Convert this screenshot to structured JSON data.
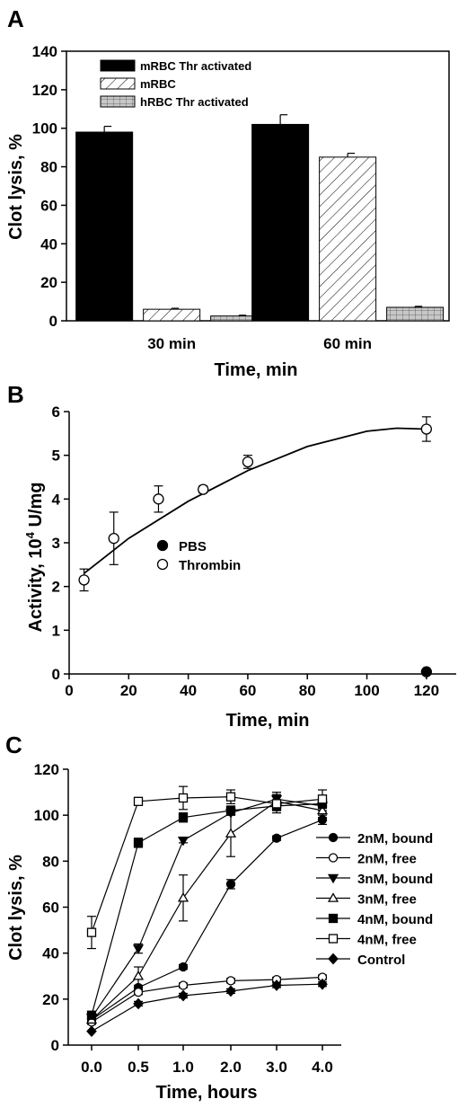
{
  "chart_data": [
    {
      "panel": "A",
      "type": "bar",
      "categories": [
        "30 min",
        "60 min"
      ],
      "series": [
        {
          "name": "mRBC Thr activated",
          "values": [
            98,
            102
          ],
          "errors": [
            3,
            5
          ],
          "style": "solid"
        },
        {
          "name": "mRBC",
          "values": [
            6,
            85
          ],
          "errors": [
            0.5,
            2
          ],
          "style": "hatch"
        },
        {
          "name": "hRBC Thr activated",
          "values": [
            2.5,
            7
          ],
          "errors": [
            0.4,
            0.5
          ],
          "style": "grid"
        }
      ],
      "xlabel": "Time, min",
      "ylabel": "Clot lysis, %",
      "ylim": [
        0,
        140
      ],
      "yticks": [
        0,
        20,
        40,
        60,
        80,
        100,
        120,
        140
      ],
      "legend_position": "top-left"
    },
    {
      "panel": "B",
      "type": "scatter",
      "series": [
        {
          "name": "PBS",
          "marker": "filled-circle",
          "points": [
            {
              "x": 120,
              "y": 0.05,
              "err": 0
            }
          ]
        },
        {
          "name": "Thrombin",
          "marker": "open-circle",
          "points": [
            {
              "x": 5,
              "y": 2.15,
              "err": 0.25
            },
            {
              "x": 15,
              "y": 3.1,
              "err": 0.6
            },
            {
              "x": 30,
              "y": 4.0,
              "err": 0.3
            },
            {
              "x": 45,
              "y": 4.22,
              "err": 0.08
            },
            {
              "x": 60,
              "y": 4.85,
              "err": 0.15
            },
            {
              "x": 120,
              "y": 5.6,
              "err": 0.28
            }
          ]
        }
      ],
      "fit_curve": {
        "x": [
          5,
          20,
          40,
          60,
          80,
          100,
          110,
          120
        ],
        "y": [
          2.3,
          3.1,
          3.95,
          4.65,
          5.2,
          5.55,
          5.62,
          5.6
        ]
      },
      "xlabel": "Time, min",
      "ylabel": "Activity, 10^4 U/mg",
      "ylabel_main": "Activity, 10",
      "ylabel_sup": "4",
      "ylabel_unit": " U/mg",
      "xlim": [
        0,
        130
      ],
      "ylim": [
        0,
        6
      ],
      "xticks": [
        0,
        20,
        40,
        60,
        80,
        100,
        120
      ],
      "yticks": [
        0,
        1,
        2,
        3,
        4,
        5,
        6
      ],
      "legend_position": "center-left"
    },
    {
      "panel": "C",
      "type": "line",
      "categories": [
        "0.0",
        "0.5",
        "1.0",
        "2.0",
        "3.0",
        "4.0"
      ],
      "series": [
        {
          "name": "2nM, bound",
          "marker": "filled-circle",
          "values": [
            11,
            25,
            34,
            70,
            90,
            98
          ],
          "errors": [
            1,
            1,
            1,
            2,
            1,
            2
          ]
        },
        {
          "name": "2nM, free",
          "marker": "open-circle",
          "values": [
            10,
            23,
            26,
            28,
            28.5,
            29.5
          ],
          "errors": [
            1,
            1,
            1,
            1,
            1,
            1
          ]
        },
        {
          "name": "3nM, bound",
          "marker": "filled-triangle-down",
          "values": [
            12,
            42,
            89,
            101,
            107,
            104
          ],
          "errors": [
            1,
            2,
            1,
            1,
            2,
            2
          ]
        },
        {
          "name": "3nM, free",
          "marker": "open-triangle-up",
          "values": [
            11,
            30,
            64,
            92,
            106,
            102
          ],
          "errors": [
            1,
            4,
            10,
            10,
            4,
            3
          ]
        },
        {
          "name": "4nM, bound",
          "marker": "filled-square",
          "values": [
            13,
            88,
            99,
            102,
            104,
            105
          ],
          "errors": [
            1,
            2,
            2,
            2,
            2,
            2
          ]
        },
        {
          "name": "4nM, free",
          "marker": "open-square",
          "values": [
            49,
            106,
            107.5,
            108,
            105,
            107
          ],
          "errors": [
            7,
            1,
            5,
            3,
            4,
            4
          ]
        },
        {
          "name": "Control",
          "marker": "filled-diamond",
          "values": [
            6,
            18,
            21.5,
            23.5,
            26,
            26.5
          ],
          "errors": [
            0.5,
            1,
            1,
            1,
            1,
            1
          ]
        }
      ],
      "xlabel": "Time, hours",
      "ylabel": "Clot lysis, %",
      "ylim": [
        0,
        120
      ],
      "yticks": [
        0,
        20,
        40,
        60,
        80,
        100,
        120
      ],
      "legend_position": "right"
    }
  ]
}
